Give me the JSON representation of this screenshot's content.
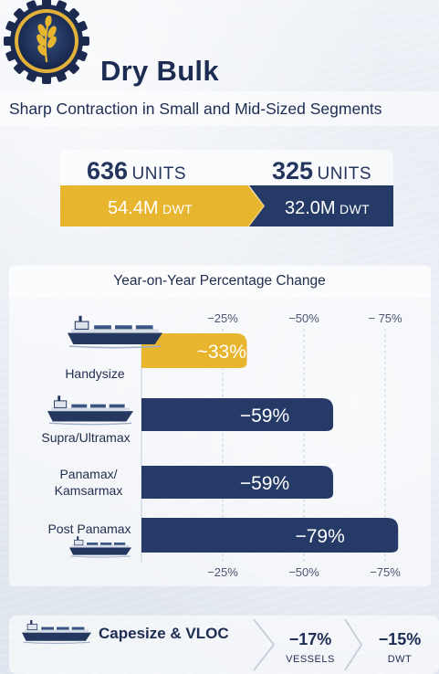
{
  "header": {
    "title": "Dry Bulk",
    "subtitle": "Sharp Contraction in Small and Mid-Sized Segments",
    "emblem_icon": "wheat-gear-icon"
  },
  "fleet_summary": {
    "before_units": "636",
    "after_units": "325",
    "units_word": "UNITS",
    "before_dwt": "54.4M",
    "after_dwt": "32.0M",
    "dwt_word": "DWT"
  },
  "colors": {
    "gold": "#e8b52f",
    "navy": "#253a66",
    "text": "#1f2d4d"
  },
  "chart_data": {
    "type": "bar",
    "orientation": "horizontal",
    "title": "Year-on-Year Percentage Change",
    "categories": [
      "Handysize",
      "Supra/Ultramax",
      "Panamax/\nKamsarmax",
      "Post Panamax"
    ],
    "values": [
      -33,
      -59,
      -59,
      -79
    ],
    "data_labels": [
      "~33%",
      "−59%",
      "−59%",
      "−79%"
    ],
    "bar_colors": [
      "#e8b52f",
      "#253a66",
      "#253a66",
      "#253a66"
    ],
    "ticks": [
      -25,
      -50,
      -75
    ],
    "tick_labels_top": [
      "−25%",
      "−50%",
      "− 75%"
    ],
    "tick_labels_bottom": [
      "−25%",
      "−50%",
      "−75%"
    ],
    "xlim": [
      0,
      -75
    ],
    "grid": true,
    "legend": "none"
  },
  "capesize": {
    "label": "Capesize & VLOC",
    "vessels_value": "−17%",
    "vessels_caption": "VESSELS",
    "dwt_value": "−15%",
    "dwt_caption": "DWT"
  }
}
